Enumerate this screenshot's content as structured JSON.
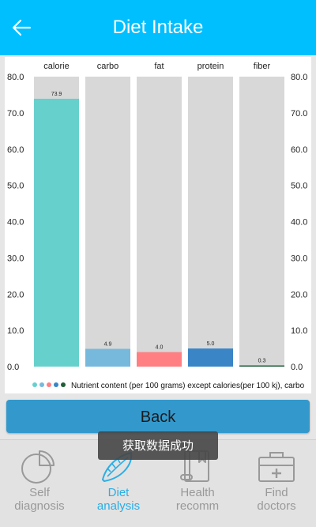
{
  "header": {
    "title": "Diet Intake"
  },
  "chart_data": {
    "type": "bar",
    "categories": [
      "calorie",
      "carbo",
      "fat",
      "protein",
      "fiber"
    ],
    "values": [
      73.9,
      4.9,
      4.0,
      5.0,
      0.3
    ],
    "value_labels": [
      "73.9",
      "4.9",
      "4.0",
      "5.0",
      "0.3"
    ],
    "max_value": 80,
    "ylim": [
      0,
      80
    ],
    "yticks": [
      "0.0",
      "10.0",
      "20.0",
      "30.0",
      "40.0",
      "50.0",
      "60.0",
      "70.0",
      "80.0"
    ],
    "colors": [
      "#66d1cc",
      "#76b9dd",
      "#ff7f82",
      "#3a85c6",
      "#1f5f37"
    ],
    "track_color": "#d8d8d8",
    "legend_text": "Nutrient content (per 100 grams) except calories(per 100 kj), carbo",
    "legend_placement": "bottom-left"
  },
  "back_button": {
    "label": "Back"
  },
  "toast": {
    "text": "获取数据成功"
  },
  "nav": {
    "items": [
      {
        "label_line1": "Self",
        "label_line2": "diagnosis",
        "icon": "pie-chart-icon"
      },
      {
        "label_line1": "Diet",
        "label_line2": "analysis",
        "icon": "food-icon",
        "active": true
      },
      {
        "label_line1": "Health",
        "label_line2": "recomm",
        "icon": "book-icon"
      },
      {
        "label_line1": "Find",
        "label_line2": "doctors",
        "icon": "medical-kit-icon"
      }
    ],
    "active_color": "#2aaee6",
    "inactive_color": "#999999"
  }
}
